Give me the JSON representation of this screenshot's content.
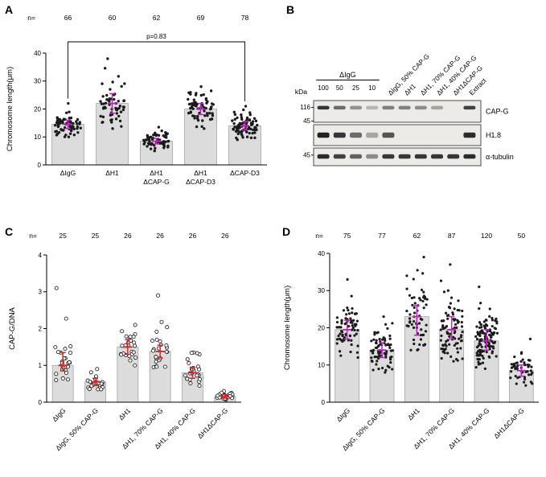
{
  "panels": {
    "a_label": "A",
    "b_label": "B",
    "c_label": "C",
    "d_label": "D",
    "n_prefix": "n="
  },
  "colors": {
    "bar_fill": "#dcdcdc",
    "bar_edge": "#a6a6a6",
    "dot": "#1b1b1b",
    "magenta": "#c024c0",
    "red": "#d22c2c",
    "axis": "#000000",
    "blot_bg": "#edebe8"
  },
  "chart_data": [
    {
      "panel": "A",
      "type": "bar-scatter",
      "ylabel": "Chromosome length(μm)",
      "ylim": [
        0,
        40
      ],
      "yticks": [
        0,
        10,
        20,
        30,
        40
      ],
      "categories": [
        "ΔIgG",
        "ΔH1",
        "ΔH1\nΔCAP-G",
        "ΔH1\nΔCAP-D3",
        "ΔCAP-D3"
      ],
      "n": [
        66,
        60,
        62,
        69,
        78
      ],
      "bar_means": [
        14.5,
        22,
        8.5,
        20,
        14
      ],
      "median": [
        14.5,
        22,
        8.5,
        20,
        14
      ],
      "iqr_low": [
        13,
        18.5,
        7.5,
        18,
        12.5
      ],
      "iqr_high": [
        16,
        25.5,
        9.5,
        22,
        15.5
      ],
      "scatter_min": [
        10,
        13,
        5,
        13,
        9
      ],
      "scatter_max": [
        22,
        38,
        13.5,
        28,
        21
      ],
      "annotation": {
        "text": "p=0.83",
        "from": 0,
        "to": 4
      },
      "error_color": "#c024c0",
      "dot_style": "filled"
    },
    {
      "panel": "C",
      "type": "bar-scatter",
      "ylabel": "CAP-G/DNA",
      "ylim": [
        0,
        4
      ],
      "yticks": [
        0,
        1,
        2,
        3,
        4
      ],
      "categories": [
        "ΔIgG",
        "ΔIgG, 50% CAP-G",
        "ΔH1",
        "ΔH1, 70% CAP-G",
        "ΔH1, 40% CAP-G",
        "ΔH1ΔCAP-G"
      ],
      "n": [
        25,
        25,
        26,
        26,
        26,
        26
      ],
      "bar_means": [
        1.0,
        0.55,
        1.5,
        1.38,
        0.8,
        0.15
      ],
      "median": [
        1.0,
        0.55,
        1.5,
        1.38,
        0.8,
        0.15
      ],
      "iqr_low": [
        0.85,
        0.45,
        1.3,
        1.2,
        0.65,
        0.11
      ],
      "iqr_high": [
        1.35,
        0.65,
        1.7,
        1.55,
        0.95,
        0.2
      ],
      "scatter_min": [
        0.6,
        0.35,
        1.0,
        0.95,
        0.45,
        0.07
      ],
      "scatter_max": [
        3.1,
        0.9,
        2.1,
        2.9,
        1.35,
        0.3
      ],
      "error_color": "#d22c2c",
      "dot_style": "open"
    },
    {
      "panel": "D",
      "type": "bar-scatter",
      "ylabel": "Chromosome length(μm)",
      "ylim": [
        0,
        40
      ],
      "yticks": [
        0,
        10,
        20,
        30,
        40
      ],
      "categories": [
        "ΔIgG",
        "ΔIgG, 50% CAP-G",
        "ΔH1",
        "ΔH1, 70% CAP-G",
        "ΔH1, 40% CAP-G",
        "ΔH1ΔCAP-G"
      ],
      "n": [
        75,
        77,
        62,
        87,
        120,
        50
      ],
      "bar_means": [
        19.5,
        14,
        23,
        19.5,
        16.5,
        8.5
      ],
      "median": [
        19.5,
        14,
        23,
        19.5,
        16.5,
        8.5
      ],
      "iqr_low": [
        17,
        12,
        18,
        17,
        14,
        7
      ],
      "iqr_high": [
        22,
        16,
        26,
        23,
        19.5,
        10
      ],
      "scatter_min": [
        12,
        8,
        14,
        11,
        9,
        4.5
      ],
      "scatter_max": [
        33,
        23,
        39,
        37,
        31,
        17
      ],
      "error_color": "#c024c0",
      "dot_style": "filled"
    }
  ],
  "blot": {
    "kda_label": "kDa",
    "group": {
      "label": "ΔIgG",
      "dilutions": [
        "100",
        "50",
        "25",
        "10"
      ]
    },
    "lane_labels": [
      "ΔIgG, 50% CAP-G",
      "ΔH1",
      "ΔH1, 70% CAP-G",
      "ΔH1, 40% CAP-G",
      "ΔH1ΔCAP-G",
      "Extract"
    ],
    "rows": [
      {
        "name": "CAP-G",
        "markers": [
          [
            "116",
            0.32
          ],
          [
            "45",
            0.95
          ]
        ],
        "band_pos": 0.33,
        "band_h": 4.5,
        "intensities": [
          0.85,
          0.6,
          0.42,
          0.25,
          0.5,
          0.5,
          0.45,
          0.33,
          0.0,
          0.8
        ]
      },
      {
        "name": "H1.8",
        "markers": [],
        "band_pos": 0.5,
        "band_h": 6.5,
        "intensities": [
          0.95,
          0.85,
          0.6,
          0.32,
          0.7,
          0.0,
          0.0,
          0.0,
          0.0,
          0.9
        ]
      },
      {
        "name": "α-tubulin",
        "markers": [
          [
            "45",
            0.4
          ]
        ],
        "band_pos": 0.48,
        "band_h": 5.5,
        "intensities": [
          0.9,
          0.8,
          0.65,
          0.45,
          0.85,
          0.85,
          0.85,
          0.85,
          0.85,
          0.9
        ]
      }
    ]
  }
}
